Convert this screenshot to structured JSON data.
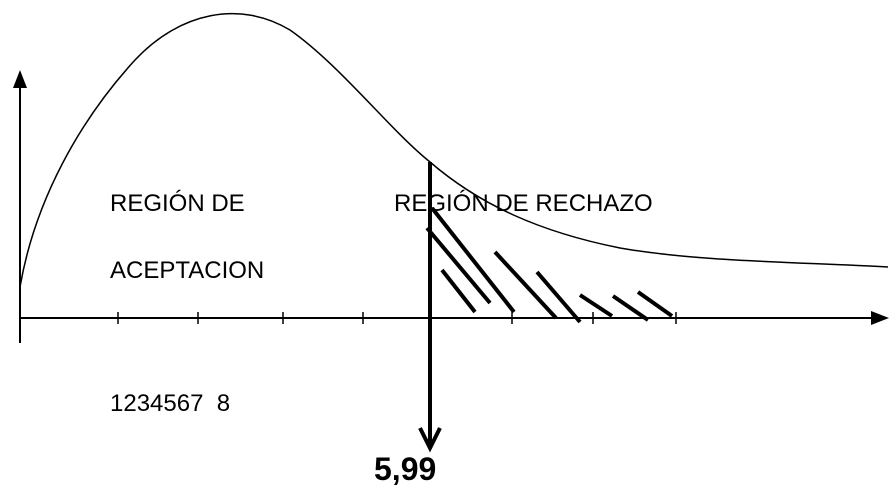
{
  "labels": {
    "acceptance_line1": "REGIÓN DE",
    "acceptance_line2": "ACEPTACION",
    "rejection": "REGIÓN DE RECHAZO",
    "tick_numbers": "1234567  8",
    "critical_value": "5,99"
  },
  "colors": {
    "ink": "#000000",
    "background": "#ffffff"
  }
}
